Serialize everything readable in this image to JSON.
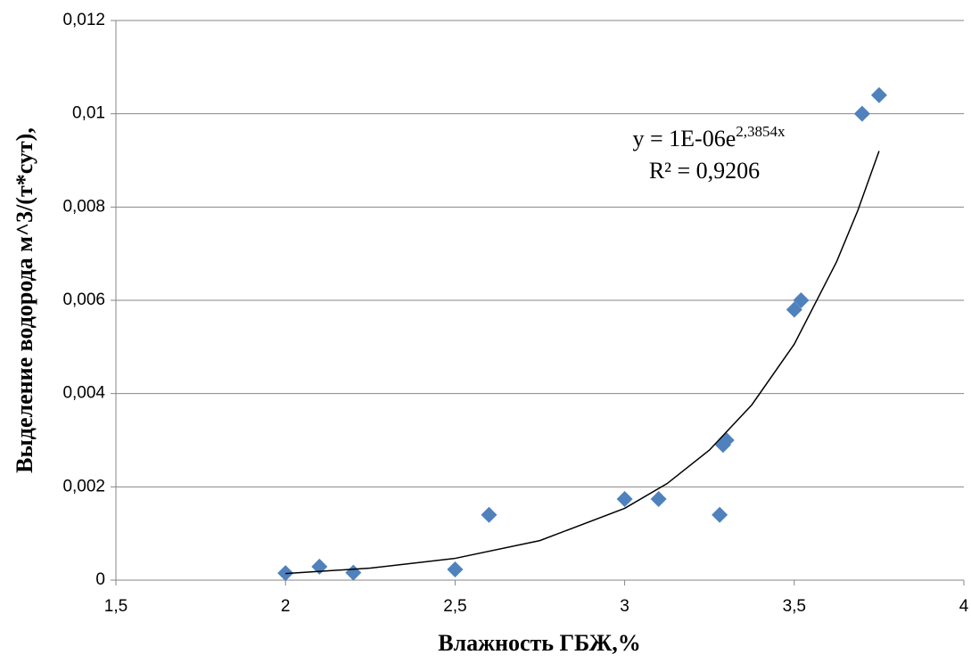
{
  "chart_data": {
    "type": "scatter",
    "x_label": "Влажность ГБЖ,%",
    "y_label": "Выделение водорода м^3/(т*сут),",
    "x": [
      2.0,
      2.1,
      2.2,
      2.5,
      2.6,
      3.0,
      3.1,
      3.28,
      3.29,
      3.3,
      3.5,
      3.52,
      3.7,
      3.75
    ],
    "series": [
      {
        "name": "Выделение водорода",
        "color": "#4f81bd",
        "values": [
          0.00015,
          0.00029,
          0.00016,
          0.00023,
          0.0014,
          0.00174,
          0.00174,
          0.0014,
          0.0029,
          0.003,
          0.0058,
          0.006,
          0.01,
          0.0104
        ]
      }
    ],
    "trendline": {
      "color": "#000000",
      "x": [
        2.0,
        2.25,
        2.5,
        2.75,
        3.0,
        3.125,
        3.25,
        3.375,
        3.5,
        3.625,
        3.6875,
        3.75
      ],
      "y": [
        0.000142,
        0.000257,
        0.000467,
        0.000848,
        0.00154,
        0.00207,
        0.00279,
        0.00376,
        0.00506,
        0.00683,
        0.00793,
        0.0092
      ]
    },
    "equation": "y = 1E-06e",
    "equation_exponent": "2,3854x",
    "r_squared": "R² = 0,9206",
    "xlim": [
      1.5,
      4
    ],
    "ylim": [
      0,
      0.012
    ],
    "xticks": [
      {
        "value": 1.5,
        "label": "1,5"
      },
      2,
      {
        "value": 2.5,
        "label": "2,5"
      },
      3,
      {
        "value": 3.5,
        "label": "3,5"
      },
      4
    ],
    "yticks": [
      0,
      {
        "value": 0.002,
        "label": "0,002"
      },
      {
        "value": 0.004,
        "label": "0,004"
      },
      {
        "value": 0.006,
        "label": "0,006"
      },
      {
        "value": 0.008,
        "label": "0,008"
      },
      {
        "value": 0.01,
        "label": "0,01"
      },
      {
        "value": 0.012,
        "label": "0,012"
      }
    ],
    "grid": true
  }
}
